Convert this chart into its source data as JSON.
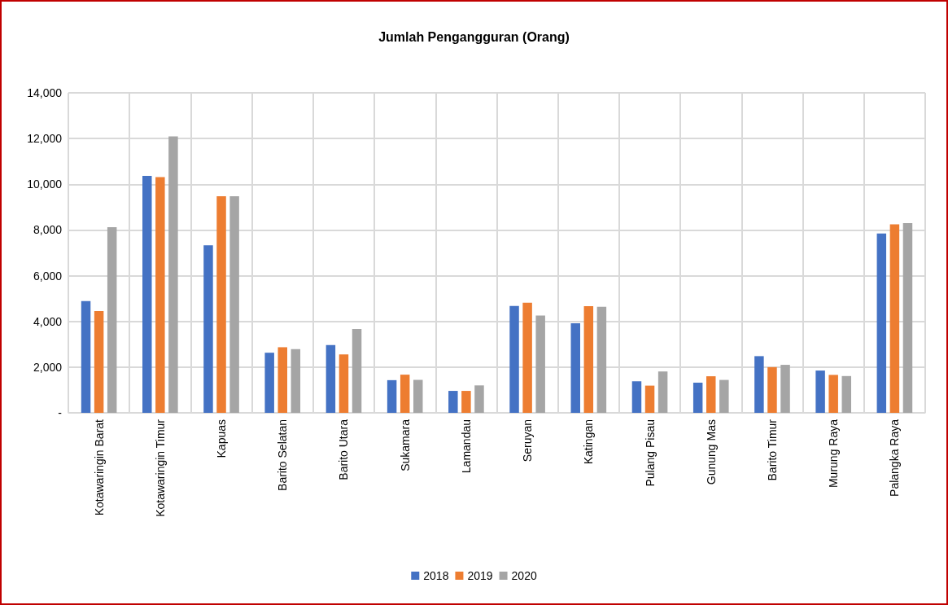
{
  "chart_data": {
    "type": "bar",
    "title": "Jumlah Pengangguran (Orang)",
    "categories": [
      "Kotawaringin Barat",
      "Kotawaringin Timur",
      "Kapuas",
      "Barito Selatan",
      "Barito Utara",
      "Sukamara",
      "Lamandau",
      "Seruyan",
      "Katingan",
      "Pulang Pisau",
      "Gunung Mas",
      "Barito Timur",
      "Murung Raya",
      "Palangka Raya"
    ],
    "series": [
      {
        "name": "2018",
        "color": "#4472c4",
        "values": [
          4890,
          10370,
          7330,
          2630,
          2970,
          1430,
          960,
          4680,
          3920,
          1380,
          1320,
          2480,
          1850,
          7850
        ]
      },
      {
        "name": "2019",
        "color": "#ed7d31",
        "values": [
          4450,
          10310,
          9480,
          2870,
          2560,
          1670,
          960,
          4820,
          4670,
          1190,
          1600,
          2000,
          1660,
          8250
        ]
      },
      {
        "name": "2020",
        "color": "#a5a5a5",
        "values": [
          8120,
          12090,
          9480,
          2790,
          3670,
          1440,
          1200,
          4260,
          4640,
          1810,
          1440,
          2100,
          1610,
          8300
        ]
      }
    ],
    "ylim": [
      0,
      14000
    ],
    "yticks": [
      {
        "value": 0,
        "label": "-"
      },
      {
        "value": 2000,
        "label": "2,000"
      },
      {
        "value": 4000,
        "label": "4,000"
      },
      {
        "value": 6000,
        "label": "6,000"
      },
      {
        "value": 8000,
        "label": "8,000"
      },
      {
        "value": 10000,
        "label": "10,000"
      },
      {
        "value": 12000,
        "label": "12,000"
      },
      {
        "value": 14000,
        "label": "14,000"
      }
    ],
    "grid": true,
    "legend": "bottom"
  }
}
